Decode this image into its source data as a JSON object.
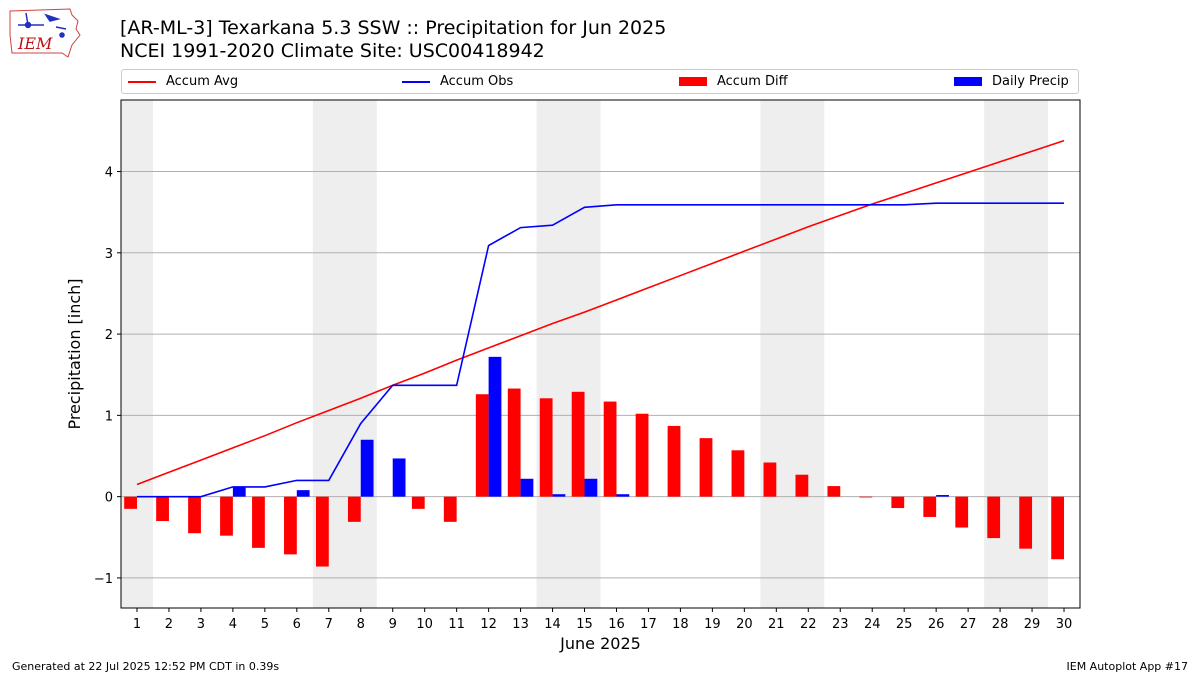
{
  "header": {
    "title_line1": "[AR-ML-3] Texarkana 5.3 SSW :: Precipitation for Jun 2025",
    "title_line2": "NCEI 1991-2020 Climate Site: USC00418942"
  },
  "logo": {
    "text": "IEM"
  },
  "legend": {
    "accum_avg": "Accum Avg",
    "accum_obs": "Accum Obs",
    "accum_diff": "Accum Diff",
    "daily_precip": "Daily Precip"
  },
  "footer": {
    "left": "Generated at 22 Jul 2025 12:52 PM CDT in 0.39s",
    "right": "IEM Autoplot App #17"
  },
  "colors": {
    "accum_avg": "#ff0000",
    "accum_obs": "#0000ff",
    "accum_diff": "#ff0000",
    "daily_precip": "#0000ff",
    "weekend_shade": "#eeeeee",
    "grid": "#b0b0b0"
  },
  "chart_data": {
    "type": "bar",
    "xlabel": "June 2025",
    "ylabel": "Precipitation [inch]",
    "ylim": [
      -1.37,
      4.88
    ],
    "xlim": [
      0.5,
      30.5
    ],
    "yticks": [
      -1,
      0,
      1,
      2,
      3,
      4
    ],
    "ytick_labels": [
      "−1",
      "0",
      "1",
      "2",
      "3",
      "4"
    ],
    "grid": "horizontal",
    "legend_position": "top",
    "days": [
      1,
      2,
      3,
      4,
      5,
      6,
      7,
      8,
      9,
      10,
      11,
      12,
      13,
      14,
      15,
      16,
      17,
      18,
      19,
      20,
      21,
      22,
      23,
      24,
      25,
      26,
      27,
      28,
      29,
      30
    ],
    "shaded_weekends": [
      [
        1,
        1
      ],
      [
        7,
        8
      ],
      [
        14,
        15
      ],
      [
        21,
        22
      ],
      [
        28,
        29
      ]
    ],
    "series": [
      {
        "name": "Accum Avg",
        "kind": "line",
        "values": [
          0.15,
          0.3,
          0.45,
          0.6,
          0.75,
          0.91,
          1.06,
          1.21,
          1.37,
          1.52,
          1.68,
          1.83,
          1.98,
          2.13,
          2.27,
          2.42,
          2.57,
          2.72,
          2.87,
          3.02,
          3.17,
          3.32,
          3.46,
          3.6,
          3.73,
          3.86,
          3.99,
          4.12,
          4.25,
          4.38
        ]
      },
      {
        "name": "Accum Obs",
        "kind": "line",
        "values": [
          0.0,
          0.0,
          0.0,
          0.12,
          0.12,
          0.2,
          0.2,
          0.9,
          1.37,
          1.37,
          1.37,
          3.09,
          3.31,
          3.34,
          3.56,
          3.59,
          3.59,
          3.59,
          3.59,
          3.59,
          3.59,
          3.59,
          3.59,
          3.59,
          3.59,
          3.61,
          3.61,
          3.61,
          3.61,
          3.61
        ]
      },
      {
        "name": "Accum Diff",
        "kind": "bar",
        "values": [
          -0.15,
          -0.3,
          -0.45,
          -0.48,
          -0.63,
          -0.71,
          -0.86,
          -0.31,
          0.0,
          -0.15,
          -0.31,
          1.26,
          1.33,
          1.21,
          1.29,
          1.17,
          1.02,
          0.87,
          0.72,
          0.57,
          0.42,
          0.27,
          0.13,
          -0.01,
          -0.14,
          -0.25,
          -0.38,
          -0.51,
          -0.64,
          -0.77
        ]
      },
      {
        "name": "Daily Precip",
        "kind": "bar",
        "values": [
          0.0,
          0.0,
          0.0,
          0.12,
          0.0,
          0.08,
          0.0,
          0.7,
          0.47,
          0.0,
          0.0,
          1.72,
          0.22,
          0.03,
          0.22,
          0.03,
          0.0,
          0.0,
          0.0,
          0.0,
          0.0,
          0.0,
          0.0,
          0.0,
          0.0,
          0.02,
          0.0,
          0.0,
          0.0,
          0.0
        ]
      }
    ]
  }
}
